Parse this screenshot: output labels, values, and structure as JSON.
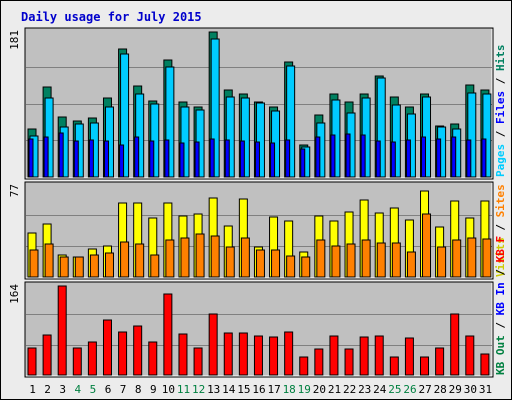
{
  "chart_data": {
    "title": "Daily usage for July 2015",
    "days": [
      "1",
      "2",
      "3",
      "4",
      "5",
      "6",
      "7",
      "8",
      "9",
      "10",
      "11",
      "12",
      "13",
      "14",
      "15",
      "16",
      "17",
      "18",
      "19",
      "20",
      "21",
      "22",
      "23",
      "24",
      "25",
      "26",
      "27",
      "28",
      "29",
      "30",
      "31"
    ],
    "weekend_days": [
      "4",
      "5",
      "11",
      "12",
      "18",
      "19",
      "25",
      "26"
    ],
    "colors": {
      "day_normal": "#000000",
      "day_weekend": "#008040",
      "hits": "#008060",
      "files": "#00ccff",
      "pages": "#0000ff",
      "visits": "#ffff00",
      "sites": "#ff8000",
      "kbytes": "#ff0000",
      "plot_bg": "#c0c0c0"
    },
    "panels": [
      {
        "type": "bar",
        "ymax_label": "181",
        "ymax": 181,
        "legend": [
          {
            "label": "Pages",
            "color": "#00ccff"
          },
          {
            "label": " / ",
            "color": "#000000"
          },
          {
            "label": "Files",
            "color": "#0000ff"
          },
          {
            "label": " / ",
            "color": "#000000"
          },
          {
            "label": "Hits",
            "color": "#008060"
          }
        ],
        "series": [
          {
            "name": "Hits",
            "color": "#008060",
            "values": [
              60,
              112,
              75,
              70,
              74,
              98,
              160,
              113,
              95,
              146,
              93,
              88,
              181,
              108,
              103,
              94,
              87,
              144,
              40,
              78,
              103,
              93,
              104,
              126,
              100,
              87,
              104,
              64,
              66,
              115,
              109
            ]
          },
          {
            "name": "Files",
            "color": "#00ccff",
            "values": [
              51,
              99,
              62,
              66,
              67,
              87,
              154,
              103,
              91,
              137,
              88,
              84,
              172,
              100,
              99,
              92,
              83,
              138,
              37,
              68,
              96,
              80,
              98,
              124,
              90,
              79,
              100,
              63,
              60,
              105,
              103
            ]
          },
          {
            "name": "Pages",
            "color": "#0000ff",
            "values": [
              48,
              50,
              55,
              45,
              46,
              45,
              40,
              50,
              45,
              46,
              43,
              44,
              47,
              46,
              45,
              44,
              42,
              46,
              35,
              50,
              52,
              54,
              52,
              45,
              44,
              46,
              50,
              48,
              50,
              46,
              48
            ]
          }
        ]
      },
      {
        "type": "bar",
        "ymax_label": "77",
        "ymax": 77,
        "legend": [
          {
            "label": "Visits",
            "color": "#cccc00"
          },
          {
            "label": " / ",
            "color": "#000000"
          },
          {
            "label": "Sites",
            "color": "#ff8000"
          }
        ],
        "series": [
          {
            "name": "Visits",
            "color": "#ffff00",
            "values": [
              37,
              45,
              19,
              17,
              24,
              26,
              63,
              63,
              50,
              63,
              52,
              53,
              67,
              43,
              66,
              25,
              51,
              47,
              21,
              52,
              47,
              55,
              65,
              54,
              58,
              48,
              73,
              42,
              64,
              50,
              64
            ]
          },
          {
            "name": "Sites",
            "color": "#ff8000",
            "values": [
              23,
              28,
              17,
              17,
              19,
              20,
              30,
              28,
              19,
              31,
              33,
              36,
              35,
              25,
              33,
              23,
              23,
              18,
              17,
              31,
              26,
              28,
              31,
              29,
              29,
              21,
              53,
              25,
              31,
              33,
              32
            ]
          }
        ]
      },
      {
        "type": "bar",
        "ymax_label": "164",
        "ymax": 164,
        "legend": [
          {
            "label": "KB Out",
            "color": "#008040"
          },
          {
            "label": " / ",
            "color": "#000000"
          },
          {
            "label": "KB In",
            "color": "#0000ff"
          },
          {
            "label": " / ",
            "color": "#000000"
          },
          {
            "label": "KB F",
            "color": "#ff0000"
          }
        ],
        "series": [
          {
            "name": "KB F",
            "color": "#ff0000",
            "values": [
              50,
              74,
              164,
              50,
              61,
              101,
              79,
              90,
              61,
              149,
              75,
              50,
              112,
              77,
              77,
              71,
              70,
              80,
              34,
              48,
              71,
              47,
              70,
              71,
              34,
              68,
              33,
              50,
              112,
              71,
              38
            ]
          }
        ]
      }
    ]
  }
}
